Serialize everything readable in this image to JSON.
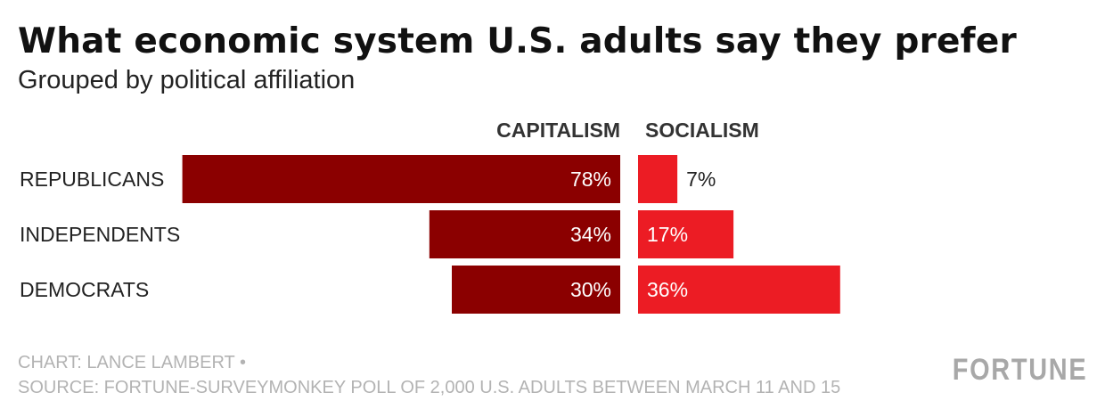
{
  "title": "What economic system U.S. adults say they prefer",
  "subtitle": "Grouped by political affiliation",
  "credit_line1": "CHART: LANCE LAMBERT •",
  "credit_line2": "SOURCE: FORTUNE-SURVEYMONKEY POLL OF 2,000 U.S. ADULTS BETWEEN MARCH 11 AND 15",
  "brand": "FORTUNE",
  "colors": {
    "capitalism": "#8b0000",
    "socialism": "#ec1c24",
    "text_dark": "#222222",
    "text_light": "#ffffff"
  },
  "chart_data": {
    "type": "bar",
    "categories": [
      "REPUBLICANS",
      "INDEPENDENTS",
      "DEMOCRATS"
    ],
    "series": [
      {
        "name": "CAPITALISM",
        "values": [
          78,
          34,
          30
        ],
        "labels": [
          "78%",
          "34%",
          "30%"
        ]
      },
      {
        "name": "SOCIALISM",
        "values": [
          7,
          17,
          36
        ],
        "labels": [
          "7%",
          "17%",
          "36%"
        ]
      }
    ],
    "grid": false,
    "legend": "top column headers"
  }
}
